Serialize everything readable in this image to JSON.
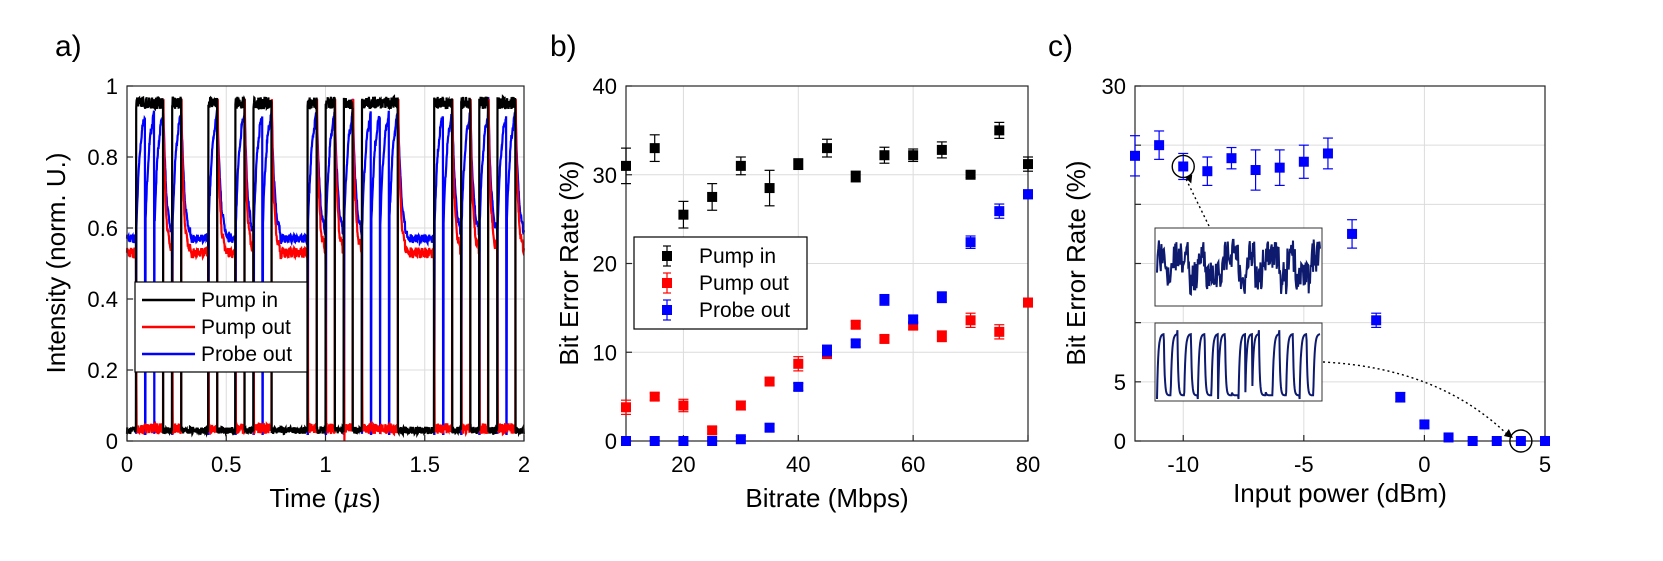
{
  "chart_data": [
    {
      "panel": "a)",
      "type": "line",
      "xlabel_prefix": "Time (",
      "xlabel_mu": "μ",
      "xlabel_suffix": "s)",
      "ylabel": "Intensity (norm. U.)",
      "xlim": [
        0,
        2
      ],
      "ylim": [
        0,
        1
      ],
      "xticks": [
        0,
        0.5,
        1,
        1.5,
        2
      ],
      "xtick_labels": [
        "0",
        "0.5",
        "1",
        "1.5",
        "2"
      ],
      "yticks": [
        0,
        0.2,
        0.4,
        0.6,
        0.8,
        1
      ],
      "ytick_labels": [
        "0",
        "0.2",
        "0.4",
        "0.6",
        "0.8",
        "1"
      ],
      "legend": [
        "Pump in",
        "Pump out",
        "Probe out"
      ],
      "legend_position": "lower-left",
      "bit_period_us": 0.0455,
      "bits": [
        0,
        1,
        1,
        1,
        0,
        1,
        0,
        0,
        0,
        1,
        0,
        0,
        1,
        0,
        1,
        1,
        0,
        0,
        0,
        0,
        1,
        0,
        1,
        0,
        1,
        0,
        1,
        1,
        1,
        1,
        0,
        0,
        0,
        0,
        1,
        1,
        0,
        1,
        0,
        1,
        0,
        1,
        1,
        0
      ],
      "series": [
        {
          "name": "Pump in",
          "color": "#000000",
          "high": 0.97,
          "low": 0.02
        },
        {
          "name": "Pump out",
          "color": "#ff0000",
          "high": 0.96,
          "low": 0.53
        },
        {
          "name": "Probe out",
          "color": "#0000ff",
          "high": 0.96,
          "low": 0.57
        }
      ]
    },
    {
      "panel": "b)",
      "type": "scatter",
      "xlabel": "Bitrate (Mbps)",
      "ylabel": "Bit Error Rate (%)",
      "xlim": [
        10,
        80
      ],
      "ylim": [
        0,
        40
      ],
      "xticks": [
        20,
        40,
        60,
        80
      ],
      "xtick_labels": [
        "20",
        "40",
        "60",
        "80"
      ],
      "yticks": [
        0,
        10,
        20,
        30,
        40
      ],
      "ytick_labels": [
        "0",
        "10",
        "20",
        "30",
        "40"
      ],
      "legend": [
        "Pump in",
        "Pump out",
        "Probe out"
      ],
      "legend_position": "center-left",
      "series": [
        {
          "name": "Pump in",
          "color": "#000000",
          "x": [
            10,
            15,
            20,
            25,
            30,
            35,
            40,
            45,
            50,
            55,
            60,
            65,
            70,
            75,
            80
          ],
          "y": [
            31.0,
            33.0,
            25.5,
            27.5,
            31.0,
            28.5,
            31.2,
            33.0,
            29.8,
            32.2,
            32.2,
            32.8,
            30.0,
            35.0,
            31.2
          ],
          "err": [
            2.0,
            1.5,
            1.5,
            1.5,
            1.0,
            2.0,
            0.6,
            1.0,
            0.6,
            0.9,
            0.7,
            0.9,
            0.3,
            0.9,
            0.8
          ]
        },
        {
          "name": "Pump out",
          "color": "#ff0000",
          "x": [
            10,
            15,
            20,
            25,
            30,
            35,
            40,
            45,
            50,
            55,
            60,
            65,
            70,
            75,
            80
          ],
          "y": [
            3.8,
            5.0,
            4.0,
            1.2,
            4.0,
            6.7,
            8.7,
            9.8,
            13.1,
            11.5,
            13.0,
            11.8,
            13.6,
            12.3,
            15.6
          ],
          "err": [
            0.8,
            0.4,
            0.7,
            0.4,
            0.5,
            0.4,
            0.8,
            0.5,
            0.4,
            0.4,
            0.4,
            0.6,
            0.8,
            0.8,
            0.5
          ]
        },
        {
          "name": "Probe out",
          "color": "#0000ff",
          "x": [
            10,
            15,
            20,
            25,
            30,
            35,
            40,
            45,
            50,
            55,
            60,
            65,
            70,
            75,
            80
          ],
          "y": [
            0.0,
            0.0,
            0.0,
            0.0,
            0.2,
            1.5,
            6.1,
            10.2,
            11.0,
            15.9,
            13.7,
            16.2,
            22.4,
            25.9,
            27.8
          ],
          "err": [
            0.05,
            0.05,
            0.05,
            0.05,
            0.3,
            0.4,
            0.4,
            0.6,
            0.4,
            0.6,
            0.4,
            0.6,
            0.7,
            0.8,
            0.5
          ]
        }
      ]
    },
    {
      "panel": "c)",
      "type": "scatter",
      "xlabel": "Input power (dBm)",
      "ylabel": "Bit Error Rate (%)",
      "xlim": [
        -12,
        5
      ],
      "ylim": [
        0,
        30
      ],
      "xticks": [
        -10,
        -5,
        0,
        5
      ],
      "xtick_labels": [
        "-10",
        "-5",
        "0",
        "5"
      ],
      "yticks": [
        0,
        5,
        30
      ],
      "ytick_labels": [
        "0",
        "5",
        "30"
      ],
      "grid_y": [
        0,
        5,
        10,
        15,
        20,
        25,
        30
      ],
      "series": [
        {
          "name": "Probe out",
          "color": "#0000ff",
          "x": [
            -12,
            -11,
            -10,
            -9,
            -8,
            -7,
            -6,
            -5,
            -4,
            -3,
            -2,
            -1,
            0,
            1,
            2,
            3,
            4,
            5
          ],
          "y": [
            24.1,
            25.0,
            23.2,
            22.8,
            23.9,
            22.9,
            23.1,
            23.6,
            24.3,
            17.5,
            10.2,
            3.7,
            1.4,
            0.3,
            0.0,
            0.0,
            0.0,
            0.0
          ],
          "err": [
            1.7,
            1.2,
            1.1,
            1.2,
            0.9,
            1.7,
            1.5,
            1.4,
            1.3,
            1.2,
            0.6,
            0.4,
            0.3,
            0.2,
            0.05,
            0.05,
            0.05,
            0.05
          ]
        }
      ],
      "highlighted_points": [
        {
          "x": -10,
          "y": 23.2
        },
        {
          "x": 4,
          "y": 0.0
        }
      ],
      "insets": [
        {
          "name": "noisy-trace-inset",
          "linked_point": {
            "x": -10,
            "y": 23.2
          },
          "waveform": "noisy"
        },
        {
          "name": "clean-trace-inset",
          "linked_point": {
            "x": 4,
            "y": 0.0
          },
          "waveform": "clean"
        }
      ],
      "trace_color": "#0d1a6e"
    }
  ]
}
